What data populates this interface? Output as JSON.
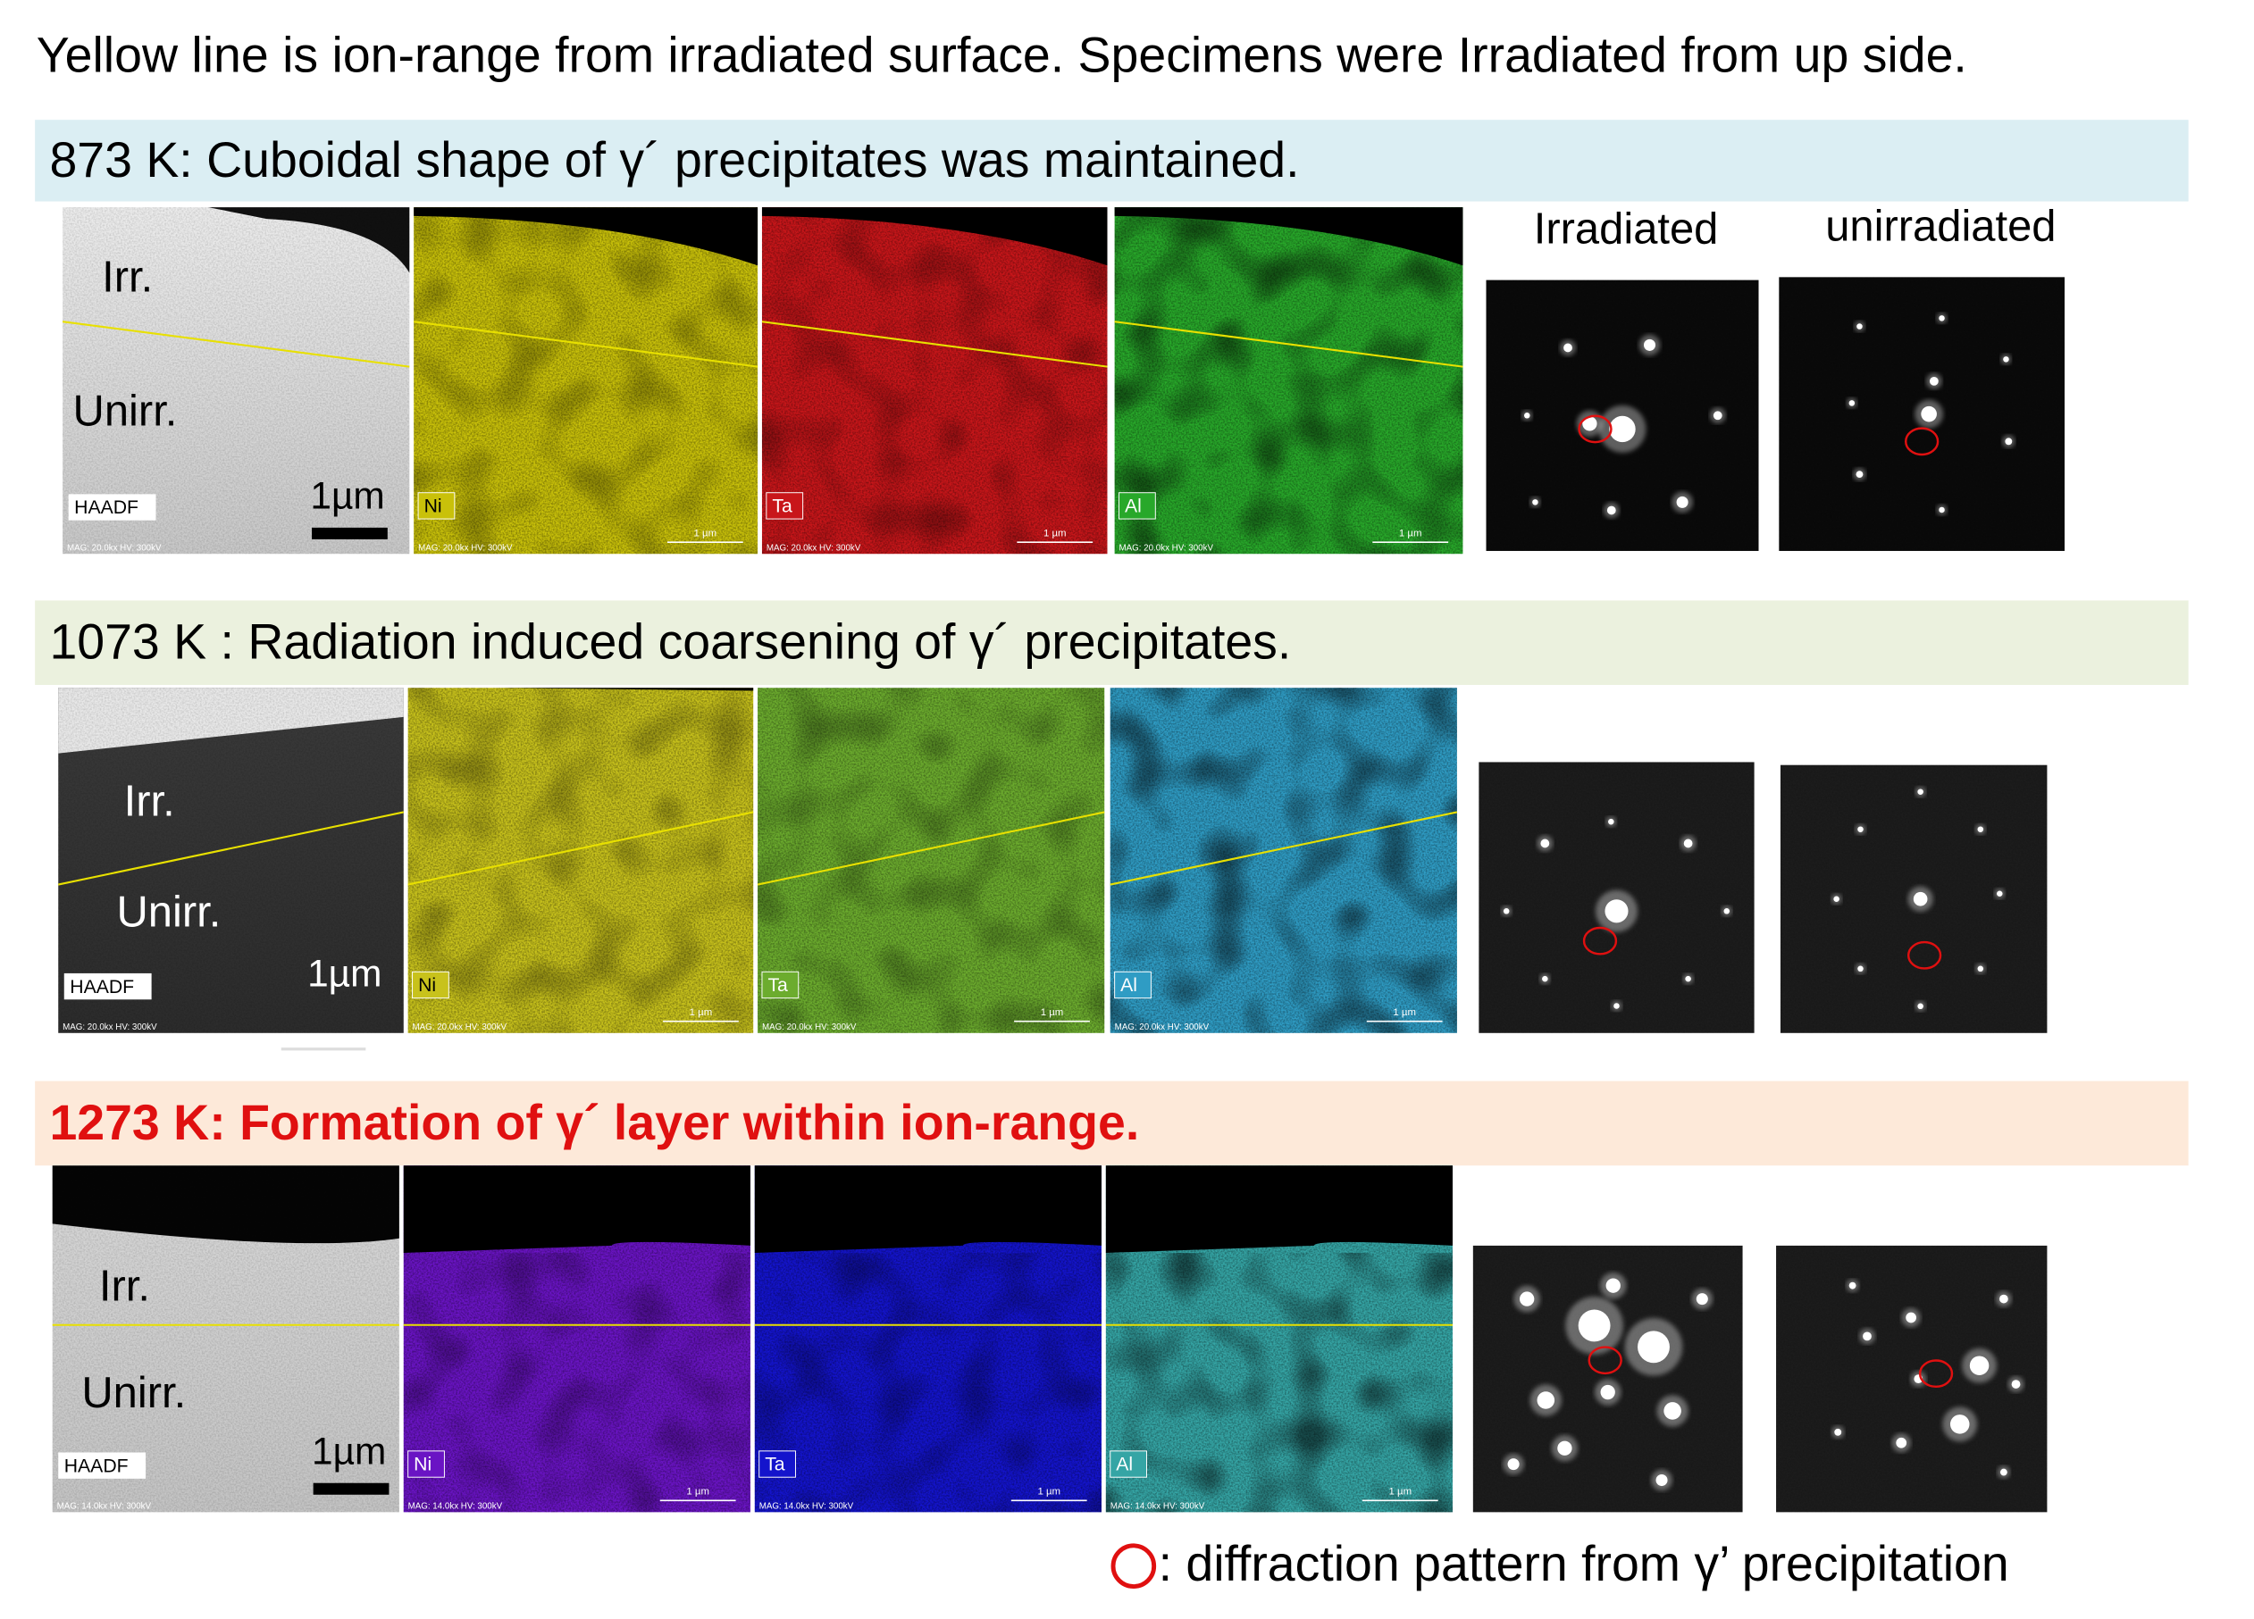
{
  "caption": "Yellow line is ion-range from irradiated surface. Specimens were Irradiated from up side.",
  "columns": {
    "irradiated": "Irradiated",
    "unirradiated": "unirradiated"
  },
  "rows": [
    {
      "title": "873 K: Cuboidal shape of γ´ precipitates was maintained.",
      "irr_label": "Irr.",
      "unirr_label": "Unirr.",
      "detector": "HAADF",
      "scale": "1µm",
      "mag": "MAG: 20.0kx  HV: 300kV",
      "map_scale": "1 µm",
      "maps": [
        {
          "label": "Ni",
          "color": "#c9c10a"
        },
        {
          "label": "Ta",
          "color": "#c8161a"
        },
        {
          "label": "Al",
          "color": "#28a82a"
        }
      ]
    },
    {
      "title": "1073 K : Radiation induced coarsening of γ´ precipitates.",
      "irr_label": "Irr.",
      "unirr_label": "Unirr.",
      "detector": "HAADF",
      "scale": "1µm",
      "mag": "MAG: 20.0kx  HV: 300kV",
      "map_scale": "1 µm",
      "maps": [
        {
          "label": "Ni",
          "color": "#c8c21c"
        },
        {
          "label": "Ta",
          "color": "#6cac2e"
        },
        {
          "label": "Al",
          "color": "#2f9cc4"
        }
      ]
    },
    {
      "title": "1273 K: Formation of γ´ layer within ion-range.",
      "irr_label": "Irr.",
      "unirr_label": "Unirr.",
      "detector": "HAADF",
      "scale": "1µm",
      "mag": "MAG: 14.0kx  HV: 300kV",
      "map_scale": "1 µm",
      "maps": [
        {
          "label": "Ni",
          "color": "#6a14c4"
        },
        {
          "label": "Ta",
          "color": "#1414cc"
        },
        {
          "label": "Al",
          "color": "#35a5a5"
        }
      ]
    }
  ],
  "legend": ": diffraction pattern from γ’ precipitation"
}
